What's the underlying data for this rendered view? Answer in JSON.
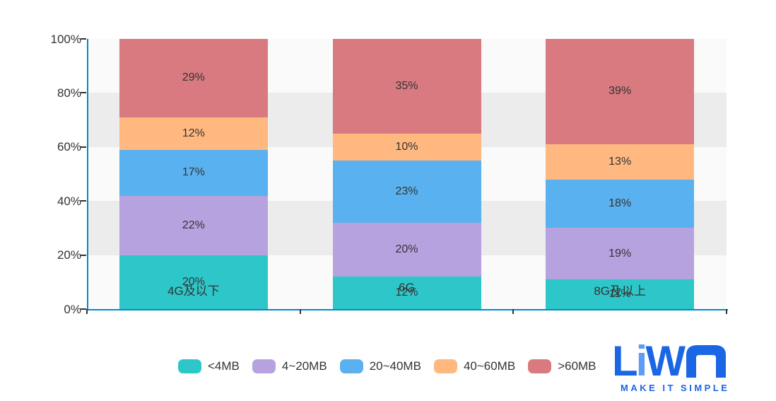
{
  "chart_data": {
    "type": "bar",
    "variant": "stacked-percentage",
    "categories": [
      "4G及以下",
      "6G",
      "8G及以上"
    ],
    "series": [
      {
        "name": "<4MB",
        "color": "#2ec7c9",
        "values": [
          20,
          12,
          11
        ]
      },
      {
        "name": "4~20MB",
        "color": "#b6a2de",
        "values": [
          22,
          20,
          19
        ]
      },
      {
        "name": "20~40MB",
        "color": "#5ab1ef",
        "values": [
          17,
          23,
          18
        ]
      },
      {
        "name": "40~60MB",
        "color": "#ffb980",
        "values": [
          12,
          10,
          13
        ]
      },
      {
        "name": ">60MB",
        "color": "#d87a80",
        "values": [
          29,
          35,
          39
        ]
      }
    ],
    "value_suffix": "%",
    "y_ticks": [
      "0%",
      "20%",
      "40%",
      "60%",
      "80%",
      "100%"
    ],
    "ylim": [
      0,
      100
    ],
    "grid": "alternating-bands",
    "legend_position": "bottom",
    "colors": {
      "axis": "#008acd",
      "tick": "#333333",
      "label_text": "#333333",
      "band_light": "#fafafa",
      "band_dark": "#ececec"
    }
  },
  "logo": {
    "letters": [
      "L",
      "i",
      "W",
      "A"
    ],
    "tagline": "MAKE IT SIMPLE",
    "colors": {
      "primary_blue": "#1b66e5",
      "light_blue": "#5c9cf5"
    }
  }
}
